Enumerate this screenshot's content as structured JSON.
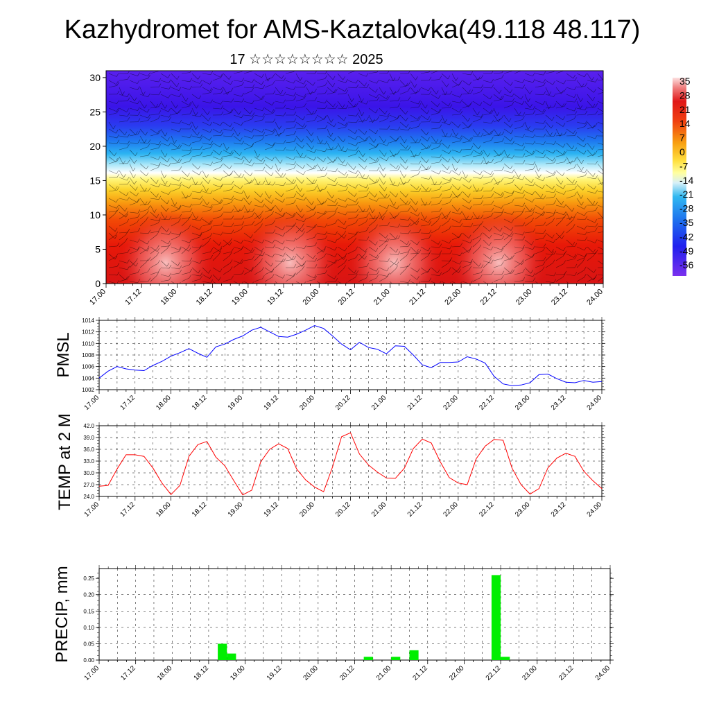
{
  "title": "Kazhydromet for AMS-Kaztalovka(49.118 48.117)",
  "subtitle": "17 ☆☆☆☆☆☆☆☆ 2025",
  "x_tick_labels": [
    "17.00",
    "17.12",
    "18.00",
    "18.12",
    "19.00",
    "19.12",
    "20.00",
    "20.12",
    "21.00",
    "21.12",
    "22.00",
    "22.12",
    "23.00",
    "23.12",
    "24.00"
  ],
  "colors": {
    "pmsl_line": "#0000ff",
    "temp_line": "#ff0000",
    "precip_bar": "#00ee00"
  },
  "chart_data": [
    {
      "type": "heatmap",
      "name": "temperature-wind-cross-section",
      "y_ticks": [
        "0",
        "5",
        "10",
        "15",
        "20",
        "25",
        "30"
      ],
      "ylim": [
        0,
        31
      ],
      "colorbar_labels": [
        "35",
        "28",
        "21",
        "14",
        "7",
        "0",
        "-7",
        "-14",
        "-21",
        "-28",
        "-35",
        "-42",
        "-49",
        "-56"
      ],
      "colorbar_range": [
        -56,
        35
      ]
    },
    {
      "type": "line",
      "name": "pmsl",
      "ylabel": "PMSL",
      "ylim": [
        1002,
        1014
      ],
      "y_ticks": [
        "1002",
        "1004",
        "1006",
        "1008",
        "1010",
        "1012",
        "1014"
      ],
      "x_hours_step": 3,
      "values": [
        1004.0,
        1005.2,
        1006.0,
        1005.6,
        1005.4,
        1005.3,
        1006.2,
        1006.9,
        1007.8,
        1008.4,
        1009.1,
        1008.3,
        1007.6,
        1009.4,
        1009.9,
        1010.7,
        1011.3,
        1012.3,
        1012.8,
        1012.0,
        1011.2,
        1011.1,
        1011.6,
        1012.3,
        1013.1,
        1012.6,
        1011.3,
        1009.9,
        1008.9,
        1010.2,
        1009.3,
        1009.0,
        1008.2,
        1009.6,
        1009.5,
        1008.0,
        1006.3,
        1005.8,
        1006.7,
        1006.7,
        1006.8,
        1007.7,
        1007.3,
        1006.6,
        1004.3,
        1003.0,
        1002.7,
        1002.8,
        1003.2,
        1004.6,
        1004.7,
        1003.9,
        1003.3,
        1003.2,
        1003.6,
        1003.3,
        1003.4
      ]
    },
    {
      "type": "line",
      "name": "temp-2m",
      "ylabel": "TEMP at 2 M",
      "ylim": [
        24.0,
        42.0
      ],
      "y_ticks": [
        "24.0",
        "27.0",
        "30.0",
        "33.0",
        "36.0",
        "39.0",
        "42.0"
      ],
      "x_hours_step": 3,
      "values": [
        26.6,
        26.8,
        31.0,
        34.6,
        34.6,
        34.2,
        31.2,
        27.4,
        24.5,
        26.8,
        34.2,
        37.2,
        38.0,
        34.0,
        31.8,
        28.0,
        24.4,
        25.6,
        32.8,
        36.0,
        37.4,
        36.2,
        31.0,
        28.2,
        26.4,
        25.2,
        31.5,
        39.2,
        40.2,
        34.8,
        32.0,
        30.2,
        28.7,
        28.6,
        31.2,
        36.2,
        38.6,
        37.6,
        32.8,
        28.8,
        27.4,
        27.0,
        33.6,
        36.8,
        38.5,
        38.3,
        31.2,
        27.0,
        24.6,
        26.0,
        31.3,
        33.8,
        35.0,
        34.2,
        30.4,
        28.0,
        26.0
      ]
    },
    {
      "type": "bar",
      "name": "precip",
      "ylabel": "PRECIP, mm",
      "ylim": [
        0,
        0.28
      ],
      "y_ticks": [
        "0.00",
        "0.05",
        "0.10",
        "0.15",
        "0.20",
        "0.25"
      ],
      "x_hours_step": 3,
      "bars": [
        {
          "x_hours": 39,
          "value": 0.05
        },
        {
          "x_hours": 42,
          "value": 0.02
        },
        {
          "x_hours": 87,
          "value": 0.01
        },
        {
          "x_hours": 96,
          "value": 0.01
        },
        {
          "x_hours": 102,
          "value": 0.03
        },
        {
          "x_hours": 129,
          "value": 0.26
        },
        {
          "x_hours": 132,
          "value": 0.01
        }
      ]
    }
  ]
}
